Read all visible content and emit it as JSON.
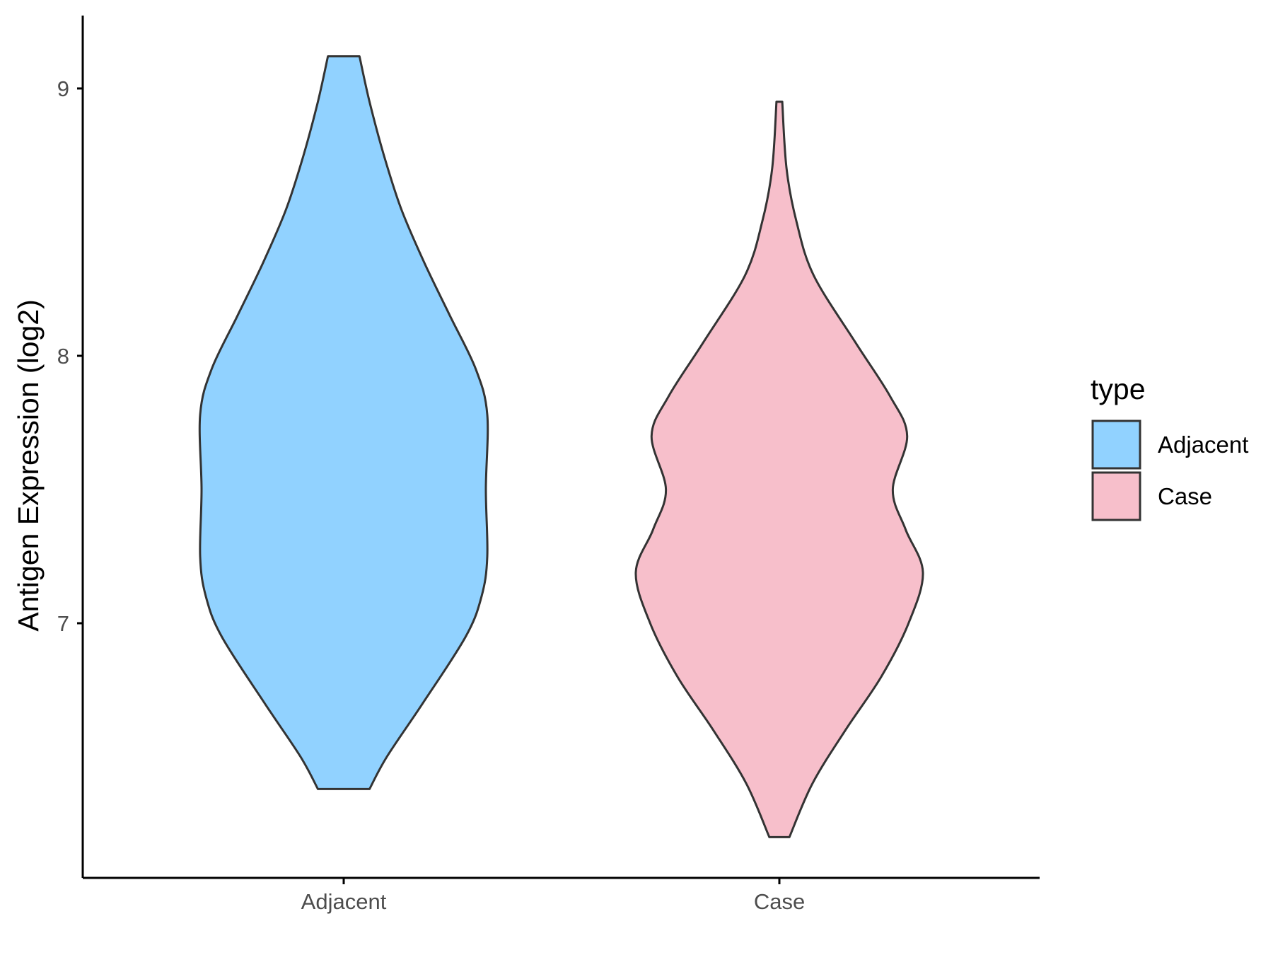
{
  "chart_data": {
    "type": "violin",
    "title": "",
    "xlabel": "",
    "ylabel": "Antigen Expression (log2)",
    "categories": [
      "Adjacent",
      "Case"
    ],
    "ylim": [
      6.05,
      9.3
    ],
    "yticks": [
      7,
      8,
      9
    ],
    "grid": false,
    "legend": {
      "title": "type",
      "position": "right",
      "entries": [
        {
          "label": "Adjacent",
          "color": "#91D2FF"
        },
        {
          "label": "Case",
          "color": "#F7BFCB"
        }
      ]
    },
    "series": [
      {
        "name": "Adjacent",
        "color": "#91D2FF",
        "min": 6.38,
        "max": 9.12,
        "density_profile": [
          [
            6.38,
            0.18
          ],
          [
            6.5,
            0.3
          ],
          [
            6.7,
            0.55
          ],
          [
            6.95,
            0.85
          ],
          [
            7.1,
            0.96
          ],
          [
            7.25,
            1.0
          ],
          [
            7.5,
            0.99
          ],
          [
            7.78,
            1.0
          ],
          [
            7.95,
            0.92
          ],
          [
            8.15,
            0.74
          ],
          [
            8.35,
            0.56
          ],
          [
            8.55,
            0.4
          ],
          [
            8.75,
            0.28
          ],
          [
            8.95,
            0.18
          ],
          [
            9.12,
            0.11
          ]
        ]
      },
      {
        "name": "Case",
        "color": "#F7BFCB",
        "min": 6.2,
        "max": 8.95,
        "density_profile": [
          [
            6.2,
            0.07
          ],
          [
            6.4,
            0.23
          ],
          [
            6.6,
            0.46
          ],
          [
            6.8,
            0.71
          ],
          [
            7.0,
            0.9
          ],
          [
            7.19,
            1.0
          ],
          [
            7.35,
            0.88
          ],
          [
            7.5,
            0.79
          ],
          [
            7.7,
            0.89
          ],
          [
            7.85,
            0.77
          ],
          [
            8.05,
            0.53
          ],
          [
            8.3,
            0.24
          ],
          [
            8.5,
            0.12
          ],
          [
            8.7,
            0.05
          ],
          [
            8.95,
            0.02
          ]
        ]
      }
    ]
  }
}
